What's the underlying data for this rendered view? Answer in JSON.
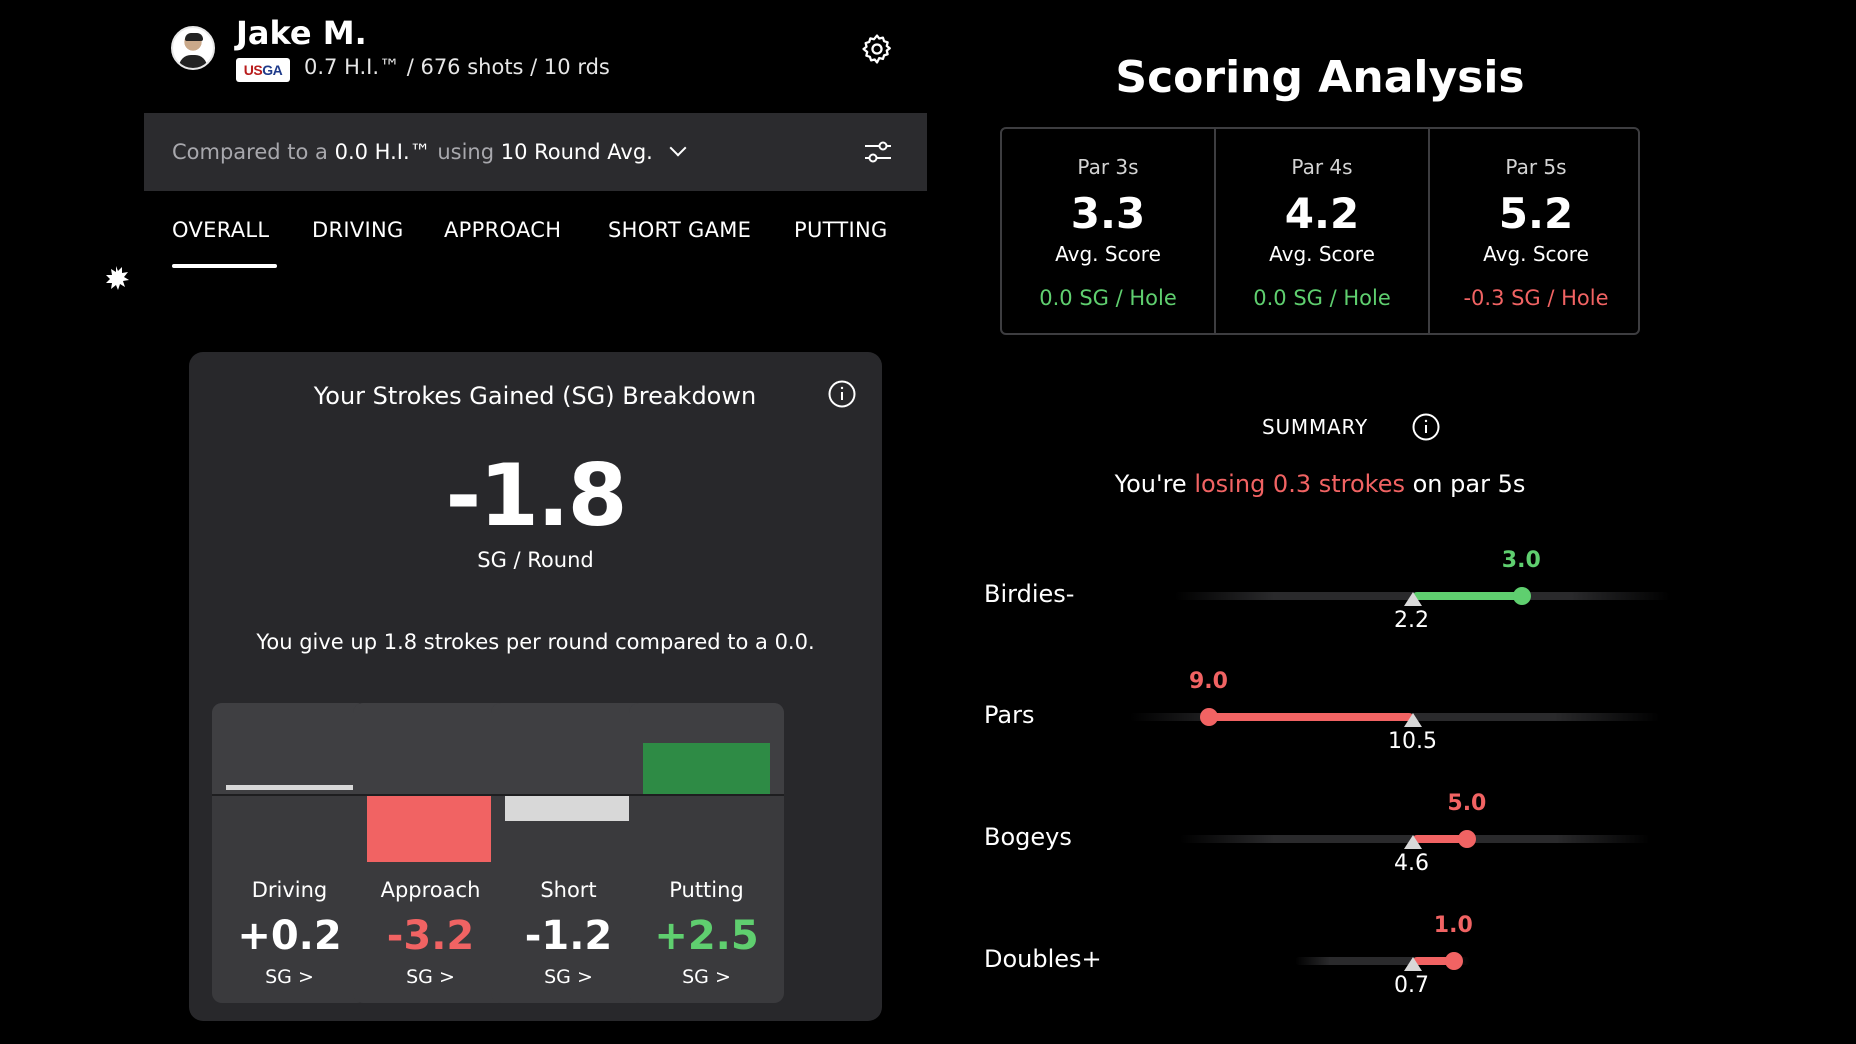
{
  "colors": {
    "positive": "#5fcf6f",
    "negative": "#f16363",
    "card": "#28282b",
    "neutral_bar": "#d8d8d8"
  },
  "profile": {
    "name": "Jake M.",
    "badge_part1": "US",
    "badge_part2": "GA",
    "stats": "0.7 H.I.™ / 676 shots / 10 rds"
  },
  "compare": {
    "prefix": "Compared to a",
    "handicap": "0.0 H.I.™",
    "using": "using",
    "period": "10 Round Avg."
  },
  "tabs": [
    {
      "label": "OVERALL",
      "active": true
    },
    {
      "label": "DRIVING",
      "active": false
    },
    {
      "label": "APPROACH",
      "active": false
    },
    {
      "label": "SHORT GAME",
      "active": false
    },
    {
      "label": "PUTTING",
      "active": false
    }
  ],
  "sg_card": {
    "title": "Your Strokes Gained (SG) Breakdown",
    "total": "-1.8",
    "total_label": "SG / Round",
    "description": "You give up 1.8 strokes per round compared to a 0.0.",
    "categories": [
      {
        "name": "Driving",
        "value": "+0.2",
        "sg": 0.2,
        "link": "SG >",
        "color": "#d8d8d8",
        "value_color": "#ffffff"
      },
      {
        "name": "Approach",
        "value": "-3.2",
        "sg": -3.2,
        "link": "SG >",
        "color": "#f16363",
        "value_color": "#f16363"
      },
      {
        "name": "Short",
        "value": "-1.2",
        "sg": -1.2,
        "link": "SG >",
        "color": "#d8d8d8",
        "value_color": "#ffffff"
      },
      {
        "name": "Putting",
        "value": "+2.5",
        "sg": 2.5,
        "link": "SG >",
        "color": "#2e8b45",
        "value_color": "#5fcf6f"
      }
    ]
  },
  "scoring": {
    "title": "Scoring Analysis",
    "pars": [
      {
        "label": "Par 3s",
        "score": "3.3",
        "score_label": "Avg. Score",
        "sg": "0.0 SG / Hole",
        "sg_color": "#5fcf6f"
      },
      {
        "label": "Par 4s",
        "score": "4.2",
        "score_label": "Avg. Score",
        "sg": "0.0 SG / Hole",
        "sg_color": "#5fcf6f"
      },
      {
        "label": "Par 5s",
        "score": "5.2",
        "score_label": "Avg. Score",
        "sg": "-0.3 SG / Hole",
        "sg_color": "#f16363"
      }
    ],
    "summary_title": "SUMMARY",
    "summary": {
      "pre": "You're ",
      "highlight": "losing 0.3 strokes",
      "post": " on par 5s"
    },
    "distribution": [
      {
        "label": "Birdies-",
        "value": "3.0",
        "benchmark": "2.2",
        "color": "#5fcf6f"
      },
      {
        "label": "Pars",
        "value": "9.0",
        "benchmark": "10.5",
        "color": "#f16363"
      },
      {
        "label": "Bogeys",
        "value": "5.0",
        "benchmark": "4.6",
        "color": "#f16363"
      },
      {
        "label": "Doubles+",
        "value": "1.0",
        "benchmark": "0.7",
        "color": "#f16363"
      }
    ]
  }
}
